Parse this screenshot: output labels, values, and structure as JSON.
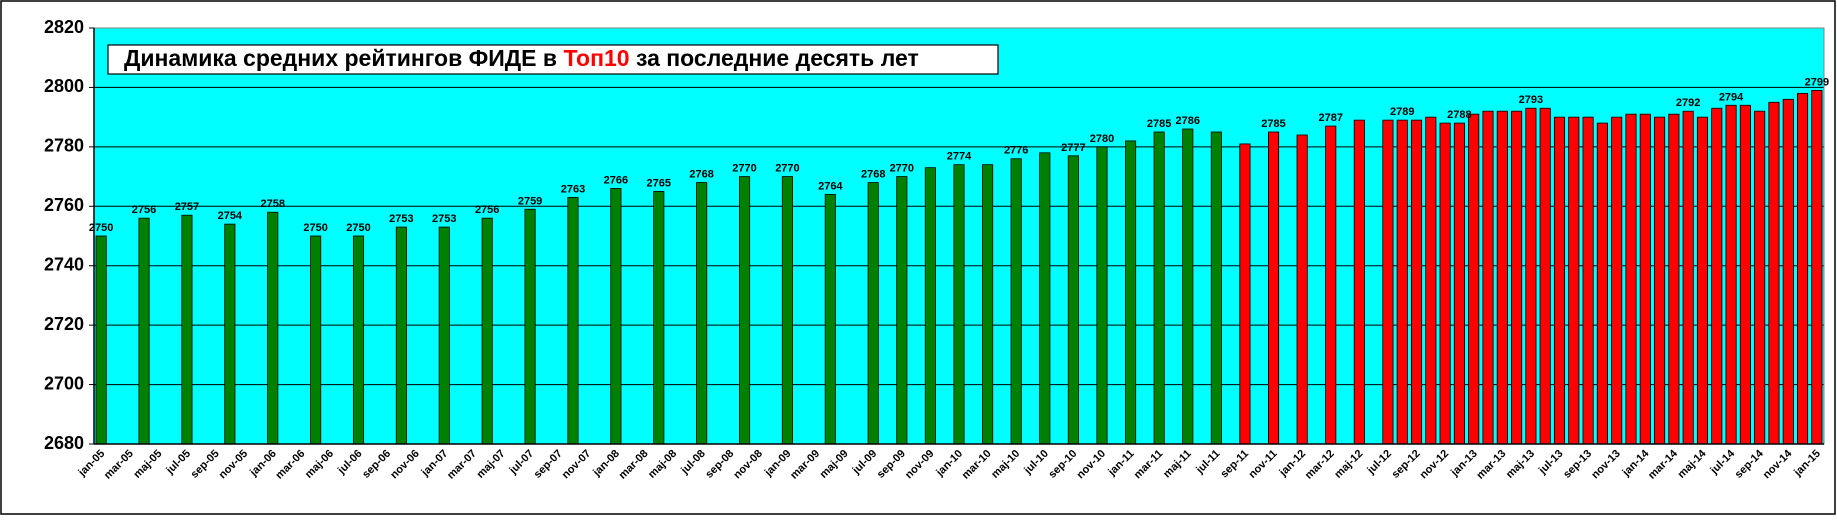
{
  "chart_data": {
    "type": "bar",
    "title": [
      "Динамика средних рейтингов ФИДЕ в ",
      "Топ10",
      " за последние десять лет"
    ],
    "title_highlight_color": "#ff0000",
    "categories": [
      "jan-05",
      null,
      "mar-05",
      null,
      "maj-05",
      null,
      "jul-05",
      null,
      "sep-05",
      null,
      "nov-05",
      null,
      "jan-06",
      null,
      "mar-06",
      null,
      "maj-06",
      null,
      "jul-06",
      null,
      "sep-06",
      null,
      "nov-06",
      null,
      "jan-07",
      null,
      "mar-07",
      null,
      "maj-07",
      null,
      "jul-07",
      null,
      "sep-07",
      null,
      "nov-07",
      null,
      "jan-08",
      null,
      "mar-08",
      null,
      "maj-08",
      null,
      "jul-08",
      null,
      "sep-08",
      null,
      "nov-08",
      null,
      "jan-09",
      null,
      "mar-09",
      null,
      "maj-09",
      null,
      "jul-09",
      null,
      "sep-09",
      null,
      "nov-09",
      null,
      "jan-10",
      null,
      "mar-10",
      null,
      "maj-10",
      null,
      "jul-10",
      null,
      "sep-10",
      null,
      "nov-10",
      null,
      "jan-11",
      null,
      "mar-11",
      null,
      "maj-11",
      null,
      "jul-11",
      null,
      "sep-11",
      null,
      "nov-11",
      null,
      "jan-12",
      null,
      "mar-12",
      null,
      "maj-12",
      null,
      "jul-12",
      null,
      "sep-12",
      null,
      "nov-12",
      null,
      "jan-13",
      null,
      "mar-13",
      null,
      "maj-13",
      null,
      "jul-13",
      null,
      "sep-13",
      null,
      "nov-13",
      null,
      "jan-14",
      null,
      "mar-14",
      null,
      "maj-14",
      null,
      "jul-14",
      null,
      "sep-14",
      null,
      "nov-14",
      null,
      "jan-15"
    ],
    "series": [
      {
        "color": "#008000",
        "values": [
          2750,
          null,
          null,
          2756,
          null,
          null,
          2757,
          null,
          null,
          2754,
          null,
          null,
          2758,
          null,
          null,
          2750,
          null,
          null,
          2750,
          null,
          null,
          2753,
          null,
          null,
          2753,
          null,
          null,
          2756,
          null,
          null,
          2759,
          null,
          null,
          2763,
          null,
          null,
          2766,
          null,
          null,
          2765,
          null,
          null,
          2768,
          null,
          null,
          2770,
          null,
          null,
          2770,
          null,
          null,
          2764,
          null,
          null,
          2768,
          null,
          2770,
          null,
          2773,
          null,
          2774,
          null,
          2774,
          null,
          2776,
          null,
          2778,
          null,
          2777,
          null,
          2780,
          null,
          2782,
          null,
          2785,
          null,
          2786,
          null,
          2785,
          null,
          null,
          null,
          null,
          null,
          null,
          null,
          null,
          null,
          null,
          null,
          null,
          null,
          null,
          null,
          null,
          null,
          null,
          null,
          null,
          null,
          null,
          null,
          null,
          null,
          null,
          null,
          null,
          null,
          null,
          null,
          null,
          null,
          null,
          null,
          null,
          null,
          null,
          null,
          null,
          null,
          null
        ],
        "value_labels": [
          "2750",
          null,
          null,
          "2756",
          null,
          null,
          "2757",
          null,
          null,
          "2754",
          null,
          null,
          "2758",
          null,
          null,
          "2750",
          null,
          null,
          "2750",
          null,
          null,
          "2753",
          null,
          null,
          "2753",
          null,
          null,
          "2756",
          null,
          null,
          "2759",
          null,
          null,
          "2763",
          null,
          null,
          "2766",
          null,
          null,
          "2765",
          null,
          null,
          "2768",
          null,
          null,
          "2770",
          null,
          null,
          "2770",
          null,
          null,
          "2764",
          null,
          null,
          "2768",
          null,
          "2770",
          null,
          null,
          null,
          "2774",
          null,
          null,
          null,
          "2776",
          null,
          null,
          null,
          "2777",
          null,
          "2780",
          null,
          null,
          null,
          "2785",
          null,
          "2786",
          null,
          null,
          null,
          null,
          null,
          null,
          null,
          null,
          null,
          null,
          null,
          null,
          null,
          null,
          null,
          null,
          null,
          null,
          null,
          null,
          null,
          null,
          null,
          null,
          null,
          null,
          null,
          null,
          null,
          null,
          null,
          null,
          null,
          null,
          null,
          null,
          null,
          null,
          null,
          null,
          null,
          null,
          null,
          null
        ]
      },
      {
        "color": "#ff0000",
        "values": [
          null,
          null,
          null,
          null,
          null,
          null,
          null,
          null,
          null,
          null,
          null,
          null,
          null,
          null,
          null,
          null,
          null,
          null,
          null,
          null,
          null,
          null,
          null,
          null,
          null,
          null,
          null,
          null,
          null,
          null,
          null,
          null,
          null,
          null,
          null,
          null,
          null,
          null,
          null,
          null,
          null,
          null,
          null,
          null,
          null,
          null,
          null,
          null,
          null,
          null,
          null,
          null,
          null,
          null,
          null,
          null,
          null,
          null,
          null,
          null,
          null,
          null,
          null,
          null,
          null,
          null,
          null,
          null,
          null,
          null,
          null,
          null,
          null,
          null,
          null,
          null,
          null,
          null,
          null,
          null,
          2781,
          null,
          2785,
          null,
          2784,
          null,
          2787,
          null,
          2789,
          null,
          2789,
          2789,
          2789,
          2790,
          2788,
          2788,
          2791,
          2792,
          2792,
          2792,
          2793,
          2793,
          2790,
          2790,
          2790,
          2788,
          2790,
          2791,
          2791,
          2790,
          2791,
          2792,
          2790,
          2793,
          2794,
          2794,
          2792,
          2795,
          2796,
          2798,
          2799
        ],
        "value_labels": [
          null,
          null,
          null,
          null,
          null,
          null,
          null,
          null,
          null,
          null,
          null,
          null,
          null,
          null,
          null,
          null,
          null,
          null,
          null,
          null,
          null,
          null,
          null,
          null,
          null,
          null,
          null,
          null,
          null,
          null,
          null,
          null,
          null,
          null,
          null,
          null,
          null,
          null,
          null,
          null,
          null,
          null,
          null,
          null,
          null,
          null,
          null,
          null,
          null,
          null,
          null,
          null,
          null,
          null,
          null,
          null,
          null,
          null,
          null,
          null,
          null,
          null,
          null,
          null,
          null,
          null,
          null,
          null,
          null,
          null,
          null,
          null,
          null,
          null,
          null,
          null,
          null,
          null,
          null,
          null,
          null,
          null,
          "2785",
          null,
          null,
          null,
          "2787",
          null,
          null,
          null,
          null,
          "2789",
          null,
          null,
          null,
          "2788",
          null,
          null,
          null,
          null,
          "2793",
          null,
          null,
          null,
          null,
          null,
          null,
          null,
          null,
          null,
          null,
          "2792",
          null,
          null,
          "2794",
          null,
          null,
          null,
          null,
          null,
          "2799"
        ]
      }
    ],
    "ylim": [
      2680,
      2820
    ],
    "yticks": [
      2680,
      2700,
      2720,
      2740,
      2760,
      2780,
      2800,
      2820
    ],
    "grid": true,
    "background": "#00ffff"
  }
}
